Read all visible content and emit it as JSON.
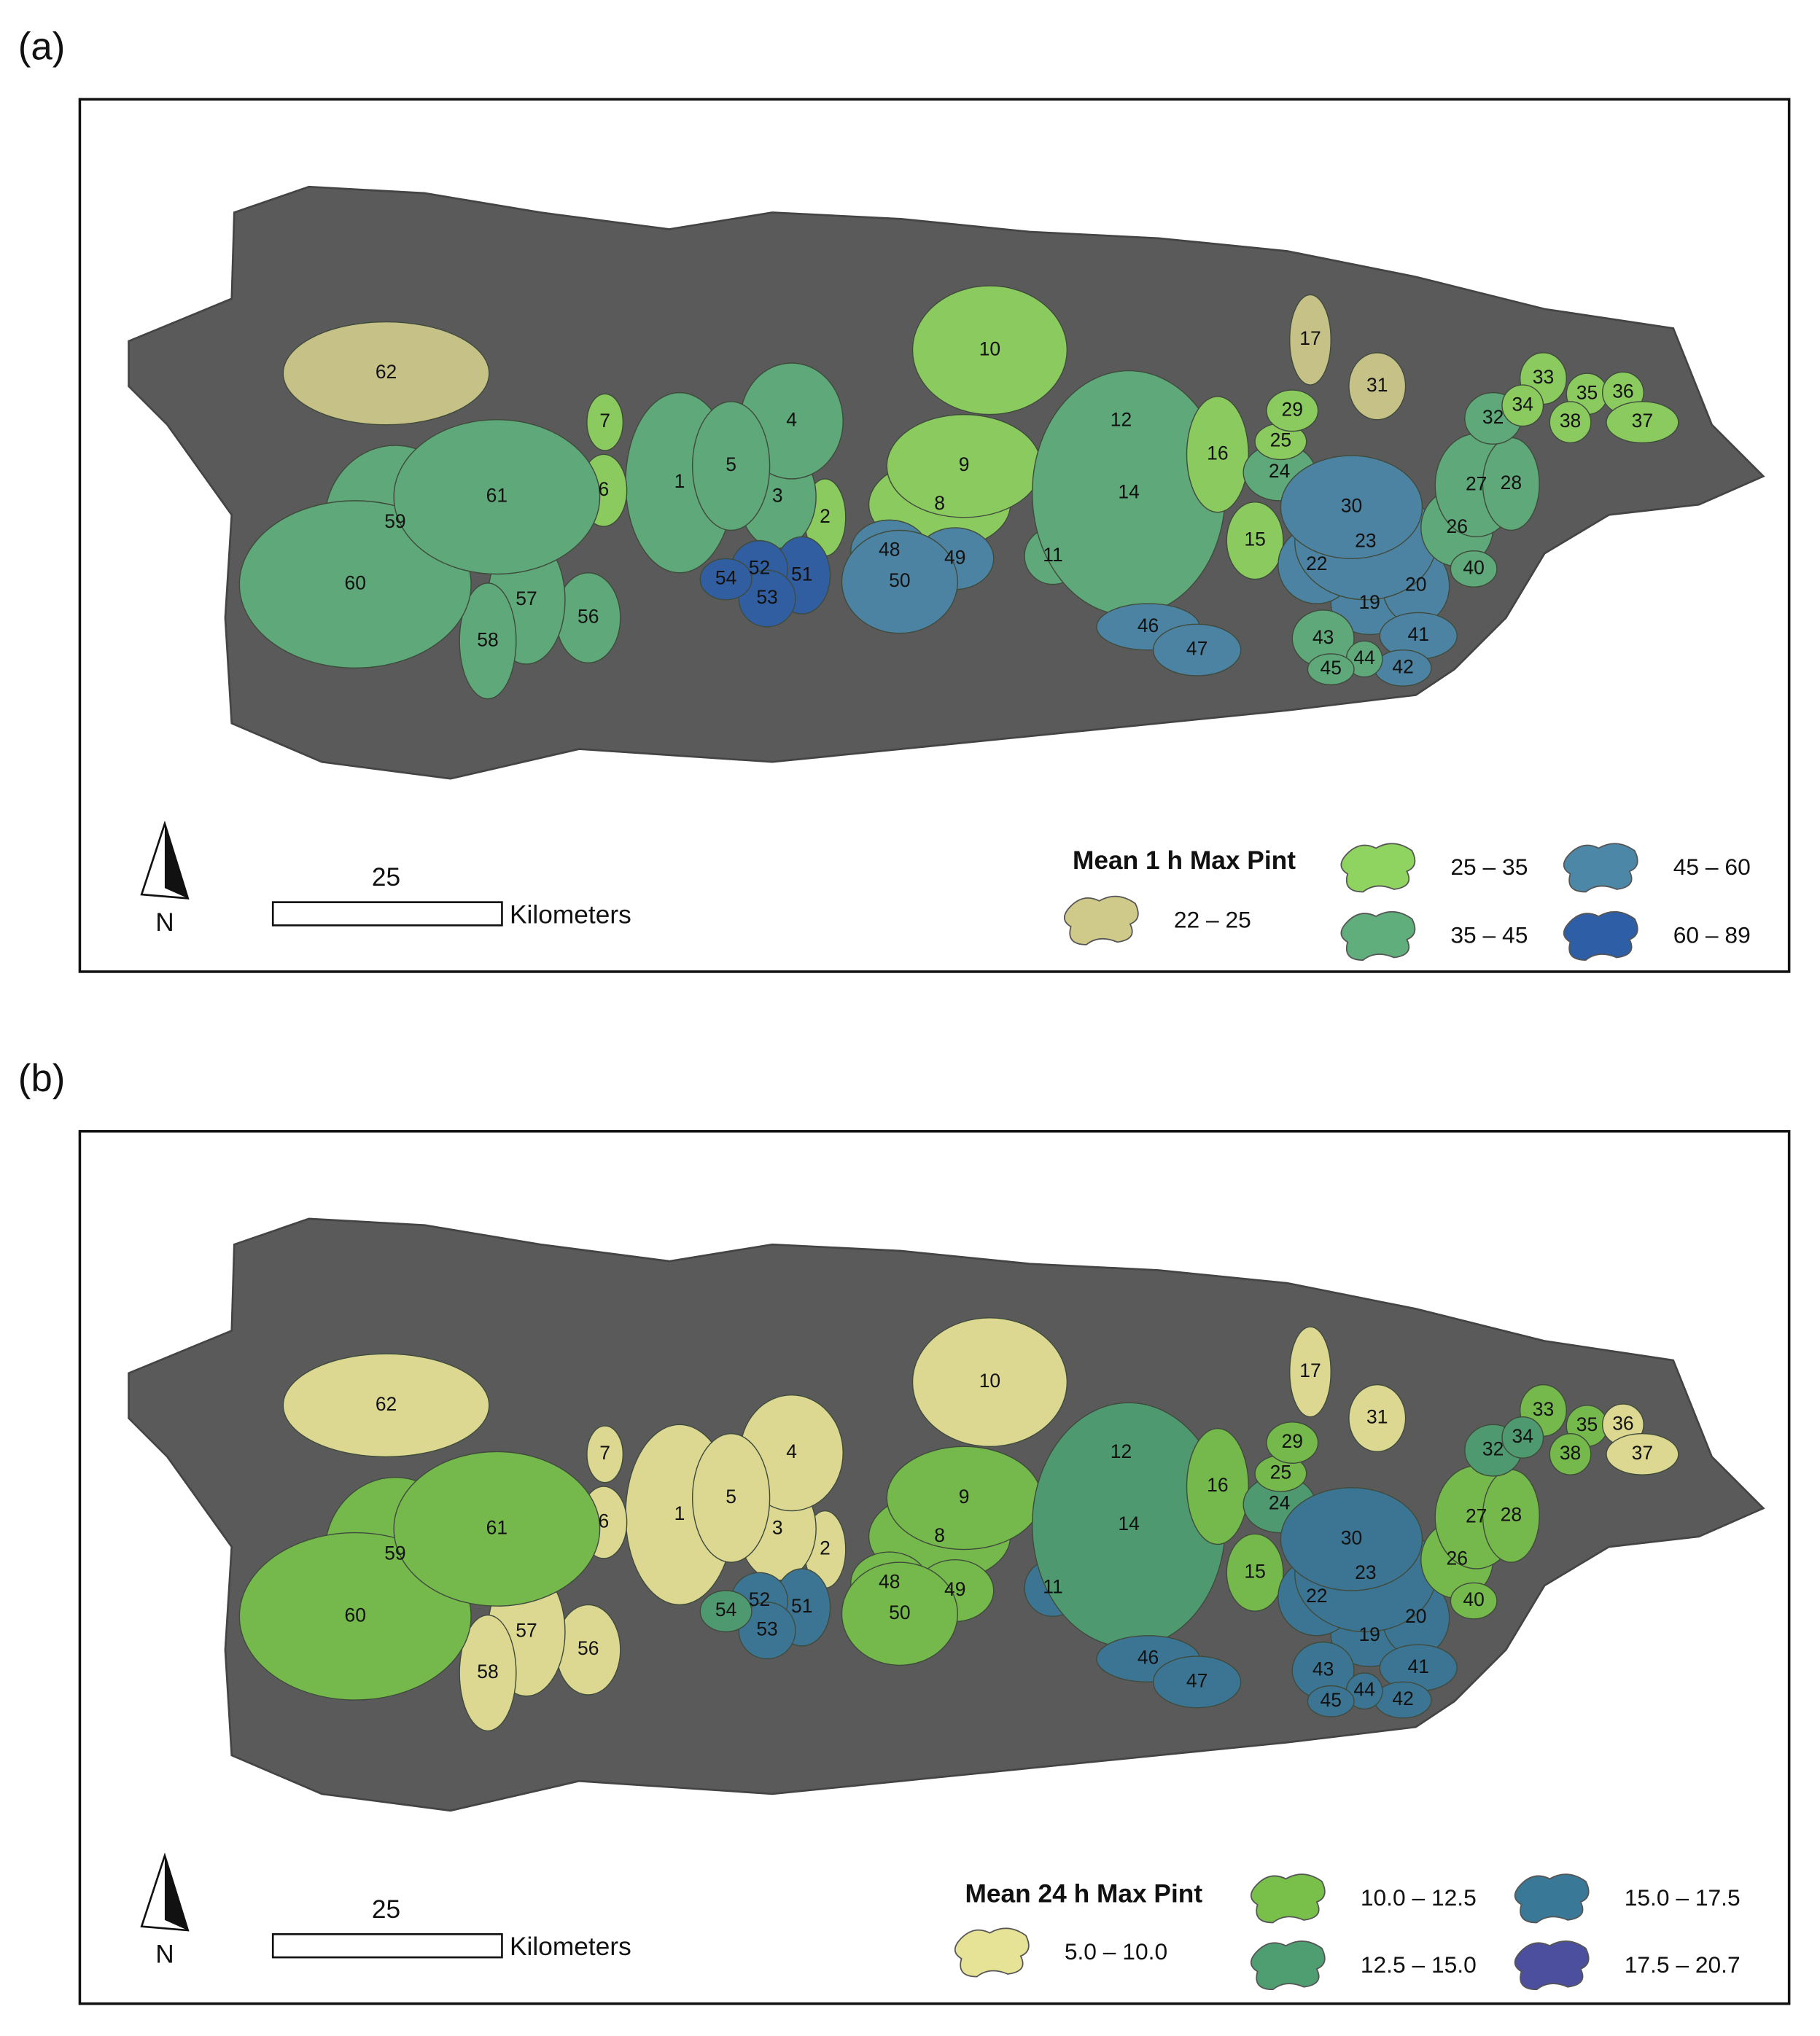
{
  "panels": [
    {
      "label": "(a)",
      "legend_title": "Mean 1 h Max Pint",
      "classes": [
        {
          "range": "22 – 25",
          "color": "#cfc98a"
        },
        {
          "range": "25 – 35",
          "color": "#8fd360"
        },
        {
          "range": "35 – 45",
          "color": "#5fae7c"
        },
        {
          "range": "45 – 60",
          "color": "#4d87a8"
        },
        {
          "range": "60 – 89",
          "color": "#2e5fa6"
        }
      ],
      "north": "N",
      "scale_value": "25",
      "scale_unit": "Kilometers",
      "watersheds": [
        {
          "id": "1",
          "class": 2
        },
        {
          "id": "2",
          "class": 1
        },
        {
          "id": "3",
          "class": 2
        },
        {
          "id": "4",
          "class": 2
        },
        {
          "id": "5",
          "class": 2
        },
        {
          "id": "6",
          "class": 1
        },
        {
          "id": "7",
          "class": 1
        },
        {
          "id": "8",
          "class": 1
        },
        {
          "id": "9",
          "class": 1
        },
        {
          "id": "10",
          "class": 1
        },
        {
          "id": "11",
          "class": 2
        },
        {
          "id": "12",
          "class": 1
        },
        {
          "id": "14",
          "class": 2
        },
        {
          "id": "15",
          "class": 1
        },
        {
          "id": "16",
          "class": 1
        },
        {
          "id": "17",
          "class": 0
        },
        {
          "id": "19",
          "class": 3
        },
        {
          "id": "20",
          "class": 3
        },
        {
          "id": "22",
          "class": 3
        },
        {
          "id": "23",
          "class": 3
        },
        {
          "id": "24",
          "class": 2
        },
        {
          "id": "25",
          "class": 1
        },
        {
          "id": "26",
          "class": 2
        },
        {
          "id": "27",
          "class": 2
        },
        {
          "id": "28",
          "class": 2
        },
        {
          "id": "29",
          "class": 1
        },
        {
          "id": "30",
          "class": 3
        },
        {
          "id": "31",
          "class": 0
        },
        {
          "id": "32",
          "class": 2
        },
        {
          "id": "33",
          "class": 1
        },
        {
          "id": "34",
          "class": 1
        },
        {
          "id": "35",
          "class": 1
        },
        {
          "id": "36",
          "class": 1
        },
        {
          "id": "37",
          "class": 1
        },
        {
          "id": "38",
          "class": 1
        },
        {
          "id": "40",
          "class": 2
        },
        {
          "id": "41",
          "class": 3
        },
        {
          "id": "42",
          "class": 3
        },
        {
          "id": "43",
          "class": 2
        },
        {
          "id": "44",
          "class": 2
        },
        {
          "id": "45",
          "class": 2
        },
        {
          "id": "46",
          "class": 3
        },
        {
          "id": "47",
          "class": 3
        },
        {
          "id": "48",
          "class": 3
        },
        {
          "id": "49",
          "class": 3
        },
        {
          "id": "50",
          "class": 3
        },
        {
          "id": "51",
          "class": 4
        },
        {
          "id": "52",
          "class": 4
        },
        {
          "id": "53",
          "class": 4
        },
        {
          "id": "54",
          "class": 4
        },
        {
          "id": "56",
          "class": 2
        },
        {
          "id": "57",
          "class": 2
        },
        {
          "id": "58",
          "class": 2
        },
        {
          "id": "59",
          "class": 2
        },
        {
          "id": "60",
          "class": 2
        },
        {
          "id": "61",
          "class": 2
        },
        {
          "id": "62",
          "class": 0
        }
      ]
    },
    {
      "label": "(b)",
      "legend_title": "Mean 24 h Max Pint",
      "classes": [
        {
          "range": "5.0 – 10.0",
          "color": "#e6e296"
        },
        {
          "range": "10.0 – 12.5",
          "color": "#78c04a"
        },
        {
          "range": "12.5 – 15.0",
          "color": "#4f9e72"
        },
        {
          "range": "15.0 – 17.5",
          "color": "#3a7898"
        },
        {
          "range": "17.5 – 20.7",
          "color": "#4b4f9e"
        }
      ],
      "north": "N",
      "scale_value": "25",
      "scale_unit": "Kilometers",
      "watersheds": [
        {
          "id": "1",
          "class": 0
        },
        {
          "id": "2",
          "class": 0
        },
        {
          "id": "3",
          "class": 0
        },
        {
          "id": "4",
          "class": 0
        },
        {
          "id": "5",
          "class": 0
        },
        {
          "id": "6",
          "class": 0
        },
        {
          "id": "7",
          "class": 0
        },
        {
          "id": "8",
          "class": 1
        },
        {
          "id": "9",
          "class": 1
        },
        {
          "id": "10",
          "class": 0
        },
        {
          "id": "11",
          "class": 3
        },
        {
          "id": "12",
          "class": 1
        },
        {
          "id": "14",
          "class": 2
        },
        {
          "id": "15",
          "class": 1
        },
        {
          "id": "16",
          "class": 1
        },
        {
          "id": "17",
          "class": 0
        },
        {
          "id": "19",
          "class": 3
        },
        {
          "id": "20",
          "class": 3
        },
        {
          "id": "22",
          "class": 3
        },
        {
          "id": "23",
          "class": 3
        },
        {
          "id": "24",
          "class": 2
        },
        {
          "id": "25",
          "class": 1
        },
        {
          "id": "26",
          "class": 1
        },
        {
          "id": "27",
          "class": 1
        },
        {
          "id": "28",
          "class": 1
        },
        {
          "id": "29",
          "class": 1
        },
        {
          "id": "30",
          "class": 3
        },
        {
          "id": "31",
          "class": 0
        },
        {
          "id": "32",
          "class": 2
        },
        {
          "id": "33",
          "class": 1
        },
        {
          "id": "34",
          "class": 2
        },
        {
          "id": "35",
          "class": 1
        },
        {
          "id": "36",
          "class": 0
        },
        {
          "id": "37",
          "class": 0
        },
        {
          "id": "38",
          "class": 1
        },
        {
          "id": "40",
          "class": 1
        },
        {
          "id": "41",
          "class": 3
        },
        {
          "id": "42",
          "class": 3
        },
        {
          "id": "43",
          "class": 3
        },
        {
          "id": "44",
          "class": 3
        },
        {
          "id": "45",
          "class": 3
        },
        {
          "id": "46",
          "class": 3
        },
        {
          "id": "47",
          "class": 3
        },
        {
          "id": "48",
          "class": 1
        },
        {
          "id": "49",
          "class": 1
        },
        {
          "id": "50",
          "class": 1
        },
        {
          "id": "51",
          "class": 3
        },
        {
          "id": "52",
          "class": 3
        },
        {
          "id": "53",
          "class": 3
        },
        {
          "id": "54",
          "class": 2
        },
        {
          "id": "56",
          "class": 0
        },
        {
          "id": "57",
          "class": 0
        },
        {
          "id": "58",
          "class": 0
        },
        {
          "id": "59",
          "class": 1
        },
        {
          "id": "60",
          "class": 1
        },
        {
          "id": "61",
          "class": 1
        },
        {
          "id": "62",
          "class": 0
        }
      ]
    }
  ]
}
